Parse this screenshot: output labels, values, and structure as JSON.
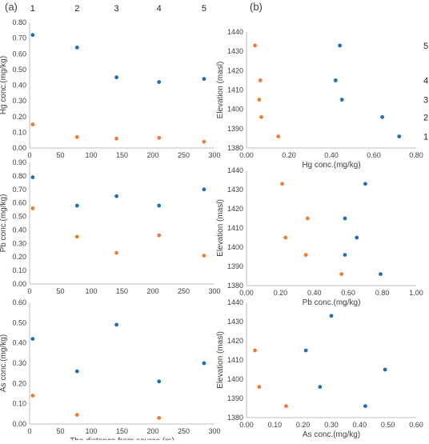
{
  "figure": {
    "panel_labels": [
      "(a)",
      "(b)"
    ],
    "station_labels": [
      "1",
      "2",
      "3",
      "4",
      "5"
    ]
  },
  "colors": {
    "series_blue": "#1f6fb5",
    "series_orange": "#ed7d31",
    "axis": "#bfbfbf",
    "text": "#404040"
  },
  "chart_data": [
    {
      "id": "a1",
      "type": "scatter",
      "xlabel": "",
      "ylabel": "Hg conc.(mg/kg)",
      "xlim": [
        0,
        300
      ],
      "ylim": [
        0,
        0.8
      ],
      "xticks": [
        "0",
        "50",
        "100",
        "150",
        "200",
        "250",
        "300"
      ],
      "yticks": [
        "0.00",
        "0.10",
        "0.20",
        "0.30",
        "0.40",
        "0.50",
        "0.60",
        "0.70",
        "0.80"
      ],
      "top_labels": [
        "1",
        "2",
        "3",
        "4",
        "5"
      ],
      "top_label_x": [
        5,
        77,
        141,
        210,
        283
      ],
      "series": [
        {
          "color": "#1f6fb5",
          "points": [
            [
              5,
              0.72
            ],
            [
              77,
              0.64
            ],
            [
              141,
              0.45
            ],
            [
              210,
              0.42
            ],
            [
              283,
              0.44
            ]
          ]
        },
        {
          "color": "#ed7d31",
          "points": [
            [
              5,
              0.15
            ],
            [
              77,
              0.07
            ],
            [
              141,
              0.06
            ],
            [
              210,
              0.065
            ],
            [
              283,
              0.04
            ]
          ]
        }
      ]
    },
    {
      "id": "a2",
      "type": "scatter",
      "xlabel": "",
      "ylabel": "Pb conc.(mg/kg)",
      "xlim": [
        0,
        300
      ],
      "ylim": [
        0,
        0.9
      ],
      "xticks": [
        "0",
        "50",
        "100",
        "150",
        "200",
        "250",
        "300"
      ],
      "yticks": [
        "0.00",
        "0.10",
        "0.20",
        "0.30",
        "0.40",
        "0.50",
        "0.60",
        "0.70",
        "0.80",
        "0.90"
      ],
      "series": [
        {
          "color": "#1f6fb5",
          "points": [
            [
              5,
              0.79
            ],
            [
              77,
              0.58
            ],
            [
              141,
              0.65
            ],
            [
              210,
              0.58
            ],
            [
              283,
              0.7
            ]
          ]
        },
        {
          "color": "#ed7d31",
          "points": [
            [
              5,
              0.56
            ],
            [
              77,
              0.35
            ],
            [
              141,
              0.23
            ],
            [
              210,
              0.36
            ],
            [
              283,
              0.21
            ]
          ]
        }
      ]
    },
    {
      "id": "a3",
      "type": "scatter",
      "xlabel": "The distance from source (m)",
      "ylabel": "As conc.(mg/kg)",
      "xlim": [
        0,
        300
      ],
      "ylim": [
        0,
        0.6
      ],
      "xticks": [
        "0",
        "50",
        "100",
        "150",
        "200",
        "250",
        "300"
      ],
      "yticks": [
        "0.00",
        "0.10",
        "0.20",
        "0.30",
        "0.40",
        "0.50",
        "0.60"
      ],
      "series": [
        {
          "color": "#1f6fb5",
          "points": [
            [
              5,
              0.42
            ],
            [
              77,
              0.26
            ],
            [
              141,
              0.49
            ],
            [
              210,
              0.21
            ],
            [
              283,
              0.3
            ]
          ]
        },
        {
          "color": "#ed7d31",
          "points": [
            [
              5,
              0.14
            ],
            [
              77,
              0.045
            ],
            [
              210,
              0.03
            ]
          ]
        }
      ]
    },
    {
      "id": "b1",
      "type": "scatter",
      "xlabel": "Hg conc.(mg/kg)",
      "ylabel": "Elevation (masl)",
      "xlim": [
        0,
        0.8
      ],
      "ylim": [
        1380,
        1440
      ],
      "xticks": [
        "0.00",
        "0.20",
        "0.40",
        "0.60",
        "0.80"
      ],
      "yticks": [
        "1380",
        "1390",
        "1400",
        "1410",
        "1420",
        "1430",
        "1440"
      ],
      "right_labels": [
        "1",
        "2",
        "3",
        "4",
        "5"
      ],
      "right_label_y": [
        1386,
        1396,
        1405,
        1415,
        1433
      ],
      "series": [
        {
          "color": "#1f6fb5",
          "points": [
            [
              0.72,
              1386
            ],
            [
              0.64,
              1396
            ],
            [
              0.45,
              1405
            ],
            [
              0.42,
              1415
            ],
            [
              0.44,
              1433
            ]
          ]
        },
        {
          "color": "#ed7d31",
          "points": [
            [
              0.15,
              1386
            ],
            [
              0.07,
              1396
            ],
            [
              0.06,
              1405
            ],
            [
              0.065,
              1415
            ],
            [
              0.04,
              1433
            ]
          ]
        }
      ]
    },
    {
      "id": "b2",
      "type": "scatter",
      "xlabel": "Pb conc.(mg/kg)",
      "ylabel": "Elevation (masl)",
      "xlim": [
        0,
        1
      ],
      "ylim": [
        1380,
        1440
      ],
      "xticks": [
        "0.00",
        "0.20",
        "0.40",
        "0.60",
        "0.80",
        "1.00"
      ],
      "yticks": [
        "1380",
        "1390",
        "1400",
        "1410",
        "1420",
        "1430",
        "1440"
      ],
      "series": [
        {
          "color": "#1f6fb5",
          "points": [
            [
              0.79,
              1386
            ],
            [
              0.58,
              1396
            ],
            [
              0.65,
              1405
            ],
            [
              0.58,
              1415
            ],
            [
              0.7,
              1433
            ]
          ]
        },
        {
          "color": "#ed7d31",
          "points": [
            [
              0.56,
              1386
            ],
            [
              0.35,
              1396
            ],
            [
              0.23,
              1405
            ],
            [
              0.36,
              1415
            ],
            [
              0.21,
              1433
            ]
          ]
        }
      ]
    },
    {
      "id": "b3",
      "type": "scatter",
      "xlabel": "As conc.(mg/kg)",
      "ylabel": "Elevation (masl)",
      "xlim": [
        0,
        0.6
      ],
      "ylim": [
        1380,
        1440
      ],
      "xticks": [
        "0.00",
        "0.10",
        "0.20",
        "0.30",
        "0.40",
        "0.50",
        "0.60"
      ],
      "yticks": [
        "1380",
        "1390",
        "1400",
        "1410",
        "1420",
        "1430",
        "1440"
      ],
      "series": [
        {
          "color": "#1f6fb5",
          "points": [
            [
              0.42,
              1386
            ],
            [
              0.26,
              1396
            ],
            [
              0.49,
              1405
            ],
            [
              0.21,
              1415
            ],
            [
              0.3,
              1433
            ]
          ]
        },
        {
          "color": "#ed7d31",
          "points": [
            [
              0.14,
              1386
            ],
            [
              0.045,
              1396
            ],
            [
              0.03,
              1415
            ]
          ]
        }
      ]
    }
  ]
}
